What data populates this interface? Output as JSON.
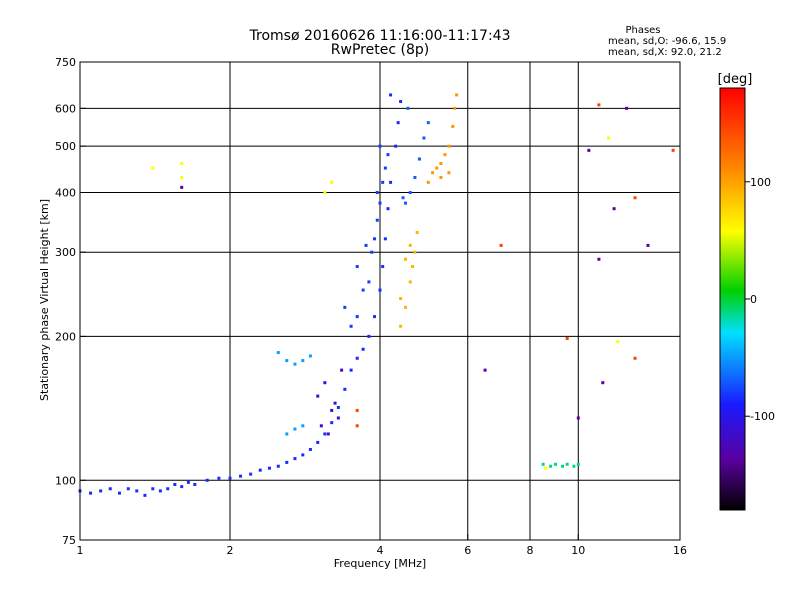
{
  "chart_data": {
    "type": "scatter",
    "title": "Tromsø 20160626 11:16:00-11:17:43",
    "subtitle": "RwPretec (8p)",
    "xlabel": "Frequency [MHz]",
    "ylabel": "Stationary phase Virtual Height [km]",
    "x_scale": "log",
    "y_scale": "log",
    "xlim": [
      1,
      16
    ],
    "ylim": [
      75,
      750
    ],
    "grid": true,
    "x_ticks": [
      1,
      2,
      4,
      6,
      8,
      10,
      16
    ],
    "x_tick_labels": [
      "1",
      "2",
      "4",
      "6",
      "8",
      "10",
      "16"
    ],
    "y_ticks": [
      75,
      100,
      200,
      300,
      400,
      500,
      600,
      750
    ],
    "y_tick_labels": [
      "75",
      "100",
      "200",
      "300",
      "400",
      "500",
      "600",
      "750"
    ],
    "phases_box": {
      "title": "Phases",
      "line_o": "mean, sd,O: -96.6, 15.9",
      "line_x": "mean, sd,X:  92.0, 21.2"
    },
    "colorbar": {
      "label": "[deg]",
      "range": [
        -180,
        180
      ],
      "ticks": [
        100,
        0,
        -100
      ],
      "tick_labels": [
        "100",
        "0",
        "-100"
      ]
    },
    "clusters": [
      {
        "phase": -95,
        "points": [
          [
            1.0,
            95
          ],
          [
            1.05,
            94
          ],
          [
            1.1,
            95
          ],
          [
            1.15,
            96
          ],
          [
            1.2,
            94
          ],
          [
            1.25,
            96
          ],
          [
            1.3,
            95
          ],
          [
            1.35,
            93
          ],
          [
            1.4,
            96
          ],
          [
            1.45,
            95
          ],
          [
            1.5,
            96
          ],
          [
            1.55,
            98
          ],
          [
            1.6,
            97
          ],
          [
            1.65,
            99
          ],
          [
            1.7,
            98
          ],
          [
            1.8,
            100
          ],
          [
            1.9,
            101
          ],
          [
            2.0,
            101
          ],
          [
            2.1,
            102
          ],
          [
            2.2,
            103
          ],
          [
            2.3,
            105
          ],
          [
            2.4,
            106
          ],
          [
            2.5,
            107
          ],
          [
            2.6,
            109
          ],
          [
            2.7,
            111
          ],
          [
            2.8,
            113
          ],
          [
            2.9,
            116
          ],
          [
            3.0,
            120
          ],
          [
            3.1,
            125
          ],
          [
            3.2,
            132
          ],
          [
            3.3,
            142
          ],
          [
            3.4,
            155
          ],
          [
            3.5,
            170
          ],
          [
            3.6,
            180
          ],
          [
            3.7,
            188
          ],
          [
            3.8,
            200
          ],
          [
            3.9,
            220
          ],
          [
            4.0,
            250
          ],
          [
            4.05,
            280
          ],
          [
            4.1,
            320
          ],
          [
            4.15,
            370
          ],
          [
            4.2,
            420
          ],
          [
            4.3,
            500
          ],
          [
            4.35,
            560
          ],
          [
            4.4,
            620
          ],
          [
            4.2,
            640
          ]
        ]
      },
      {
        "phase": -120,
        "points": [
          [
            3.0,
            150
          ],
          [
            3.1,
            160
          ],
          [
            3.2,
            140
          ],
          [
            3.3,
            135
          ],
          [
            3.05,
            130
          ],
          [
            3.15,
            125
          ],
          [
            3.25,
            145
          ],
          [
            3.35,
            170
          ]
        ]
      },
      {
        "phase": -90,
        "points": [
          [
            3.4,
            230
          ],
          [
            3.5,
            210
          ],
          [
            3.6,
            220
          ],
          [
            3.7,
            250
          ],
          [
            3.8,
            260
          ],
          [
            3.85,
            300
          ],
          [
            3.9,
            320
          ],
          [
            3.95,
            350
          ],
          [
            4.0,
            380
          ],
          [
            4.05,
            420
          ],
          [
            4.1,
            450
          ],
          [
            4.15,
            480
          ],
          [
            3.6,
            280
          ],
          [
            3.75,
            310
          ],
          [
            3.95,
            400
          ],
          [
            4.0,
            500
          ]
        ]
      },
      {
        "phase": -80,
        "points": [
          [
            4.5,
            380
          ],
          [
            4.6,
            400
          ],
          [
            4.7,
            430
          ],
          [
            4.8,
            470
          ],
          [
            4.9,
            520
          ],
          [
            5.0,
            560
          ],
          [
            4.55,
            600
          ],
          [
            4.45,
            390
          ]
        ]
      },
      {
        "phase": -60,
        "points": [
          [
            2.5,
            185
          ],
          [
            2.6,
            178
          ],
          [
            2.7,
            175
          ],
          [
            2.8,
            178
          ],
          [
            2.9,
            182
          ],
          [
            2.6,
            125
          ],
          [
            2.7,
            128
          ],
          [
            2.8,
            130
          ]
        ]
      },
      {
        "phase": 95,
        "points": [
          [
            4.4,
            210
          ],
          [
            4.5,
            230
          ],
          [
            4.6,
            260
          ],
          [
            4.65,
            280
          ],
          [
            4.7,
            300
          ],
          [
            4.75,
            330
          ],
          [
            4.6,
            310
          ],
          [
            4.5,
            290
          ],
          [
            4.4,
            240
          ]
        ]
      },
      {
        "phase": 110,
        "points": [
          [
            5.0,
            420
          ],
          [
            5.1,
            440
          ],
          [
            5.2,
            450
          ],
          [
            5.3,
            460
          ],
          [
            5.4,
            480
          ],
          [
            5.5,
            500
          ],
          [
            5.6,
            550
          ],
          [
            5.65,
            600
          ],
          [
            5.7,
            640
          ],
          [
            5.5,
            440
          ],
          [
            5.3,
            430
          ]
        ]
      },
      {
        "phase": -20,
        "points": [
          [
            8.5,
            108
          ],
          [
            8.8,
            107
          ],
          [
            9.0,
            108
          ],
          [
            9.3,
            107
          ],
          [
            9.5,
            108
          ],
          [
            9.8,
            107
          ],
          [
            10.0,
            108
          ]
        ]
      },
      {
        "phase": 60,
        "points": [
          [
            1.4,
            450
          ],
          [
            1.6,
            460
          ],
          [
            1.6,
            430
          ],
          [
            3.1,
            400
          ],
          [
            3.2,
            420
          ],
          [
            11.5,
            520
          ],
          [
            12.0,
            195
          ],
          [
            8.6,
            106
          ]
        ]
      },
      {
        "phase": 150,
        "points": [
          [
            3.6,
            140
          ],
          [
            3.6,
            130
          ],
          [
            7.0,
            310
          ],
          [
            9.5,
            198
          ],
          [
            13.0,
            180
          ],
          [
            13.0,
            390
          ],
          [
            15.5,
            490
          ],
          [
            11.0,
            610
          ]
        ]
      },
      {
        "phase": -140,
        "points": [
          [
            1.6,
            410
          ],
          [
            6.5,
            170
          ],
          [
            10.0,
            135
          ],
          [
            11.0,
            290
          ],
          [
            11.2,
            160
          ],
          [
            13.8,
            310
          ],
          [
            11.8,
            370
          ],
          [
            12.5,
            600
          ],
          [
            10.5,
            490
          ]
        ]
      }
    ]
  }
}
